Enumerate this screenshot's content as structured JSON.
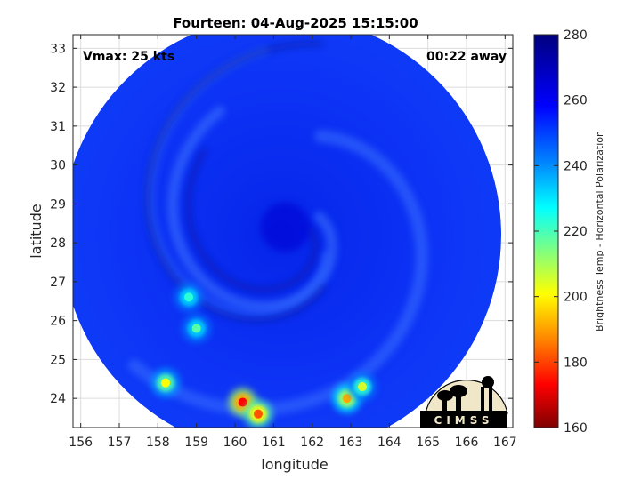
{
  "chart_data": {
    "type": "heatmap",
    "title": "Fourteen: 04-Aug-2025 15:15:00",
    "xlabel": "longitude",
    "ylabel": "latitude",
    "xlim": [
      155.8,
      167.2
    ],
    "ylim": [
      23.25,
      33.35
    ],
    "x_ticks": [
      156,
      157,
      158,
      159,
      160,
      161,
      162,
      163,
      164,
      165,
      166,
      167
    ],
    "y_ticks": [
      24,
      25,
      26,
      27,
      28,
      29,
      30,
      31,
      32,
      33
    ],
    "grid": true,
    "annotations": {
      "vmax": "Vmax: 25 kts",
      "away": "00:22 away"
    },
    "colorbar": {
      "label": "Brightness Temp - Horizontal Polarization",
      "range": [
        160,
        280
      ],
      "ticks": [
        160,
        180,
        200,
        220,
        240,
        260,
        280
      ],
      "colormap": [
        "#7f0000",
        "#ff0000",
        "#ff8000",
        "#ffff00",
        "#80ff80",
        "#00ffff",
        "#0080ff",
        "#0000ff",
        "#00007f"
      ]
    },
    "swath": {
      "center": [
        161.2,
        28.2
      ],
      "background_value": 262,
      "eye": {
        "lon": 161.3,
        "lat": 28.4,
        "value": 270
      },
      "cold_spots": [
        {
          "lon": 160.2,
          "lat": 23.9,
          "value": 175
        },
        {
          "lon": 160.6,
          "lat": 23.6,
          "value": 185
        },
        {
          "lon": 158.2,
          "lat": 24.4,
          "value": 205
        },
        {
          "lon": 162.9,
          "lat": 24.0,
          "value": 195
        },
        {
          "lon": 163.3,
          "lat": 24.3,
          "value": 210
        },
        {
          "lon": 159.0,
          "lat": 25.8,
          "value": 225
        },
        {
          "lon": 158.8,
          "lat": 26.6,
          "value": 230
        }
      ]
    },
    "logo": "CIMSS"
  }
}
